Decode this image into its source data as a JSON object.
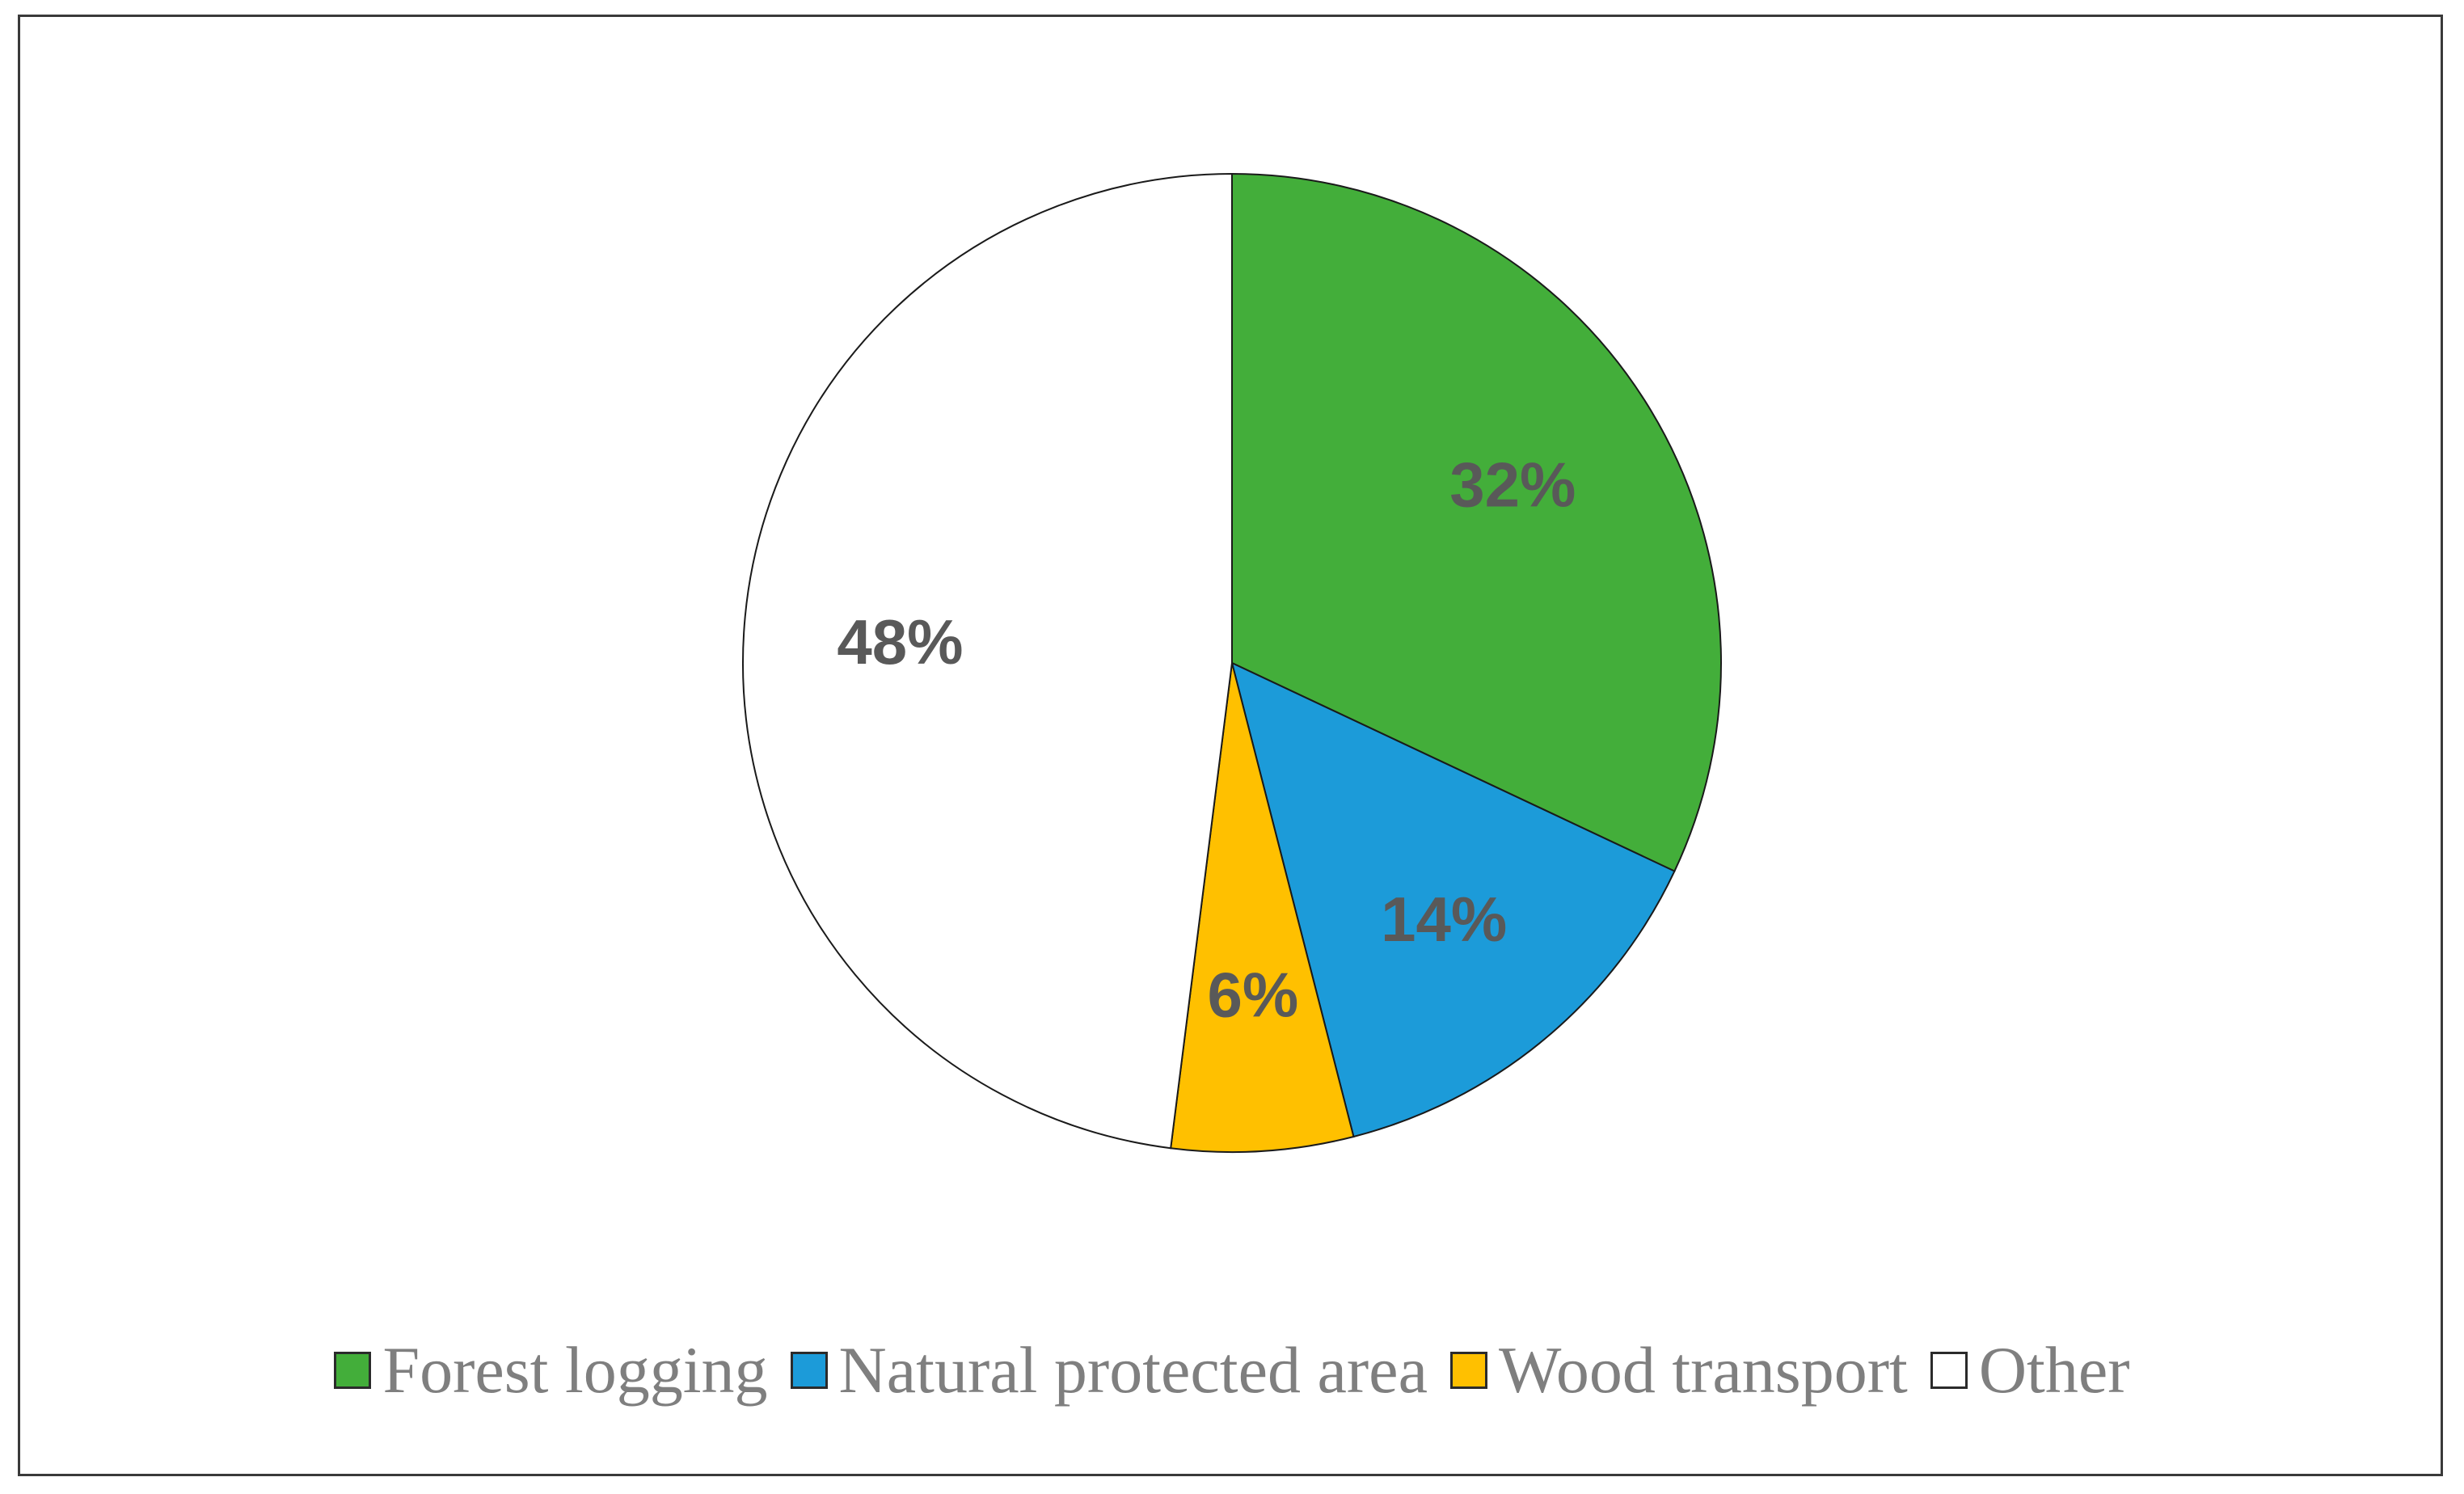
{
  "chart_data": {
    "type": "pie",
    "title": "",
    "categories": [
      "Forest logging",
      "Natural protected area",
      "Wood transport",
      "Other"
    ],
    "values": [
      32,
      14,
      6,
      48
    ],
    "labels": [
      "32%",
      "14%",
      "6%",
      "48%"
    ],
    "colors": [
      "#43AE3A",
      "#1C9BD9",
      "#FFC000",
      "#FFFFFF"
    ],
    "start_angle": "12 o'clock, clockwise",
    "legend_position": "bottom"
  }
}
